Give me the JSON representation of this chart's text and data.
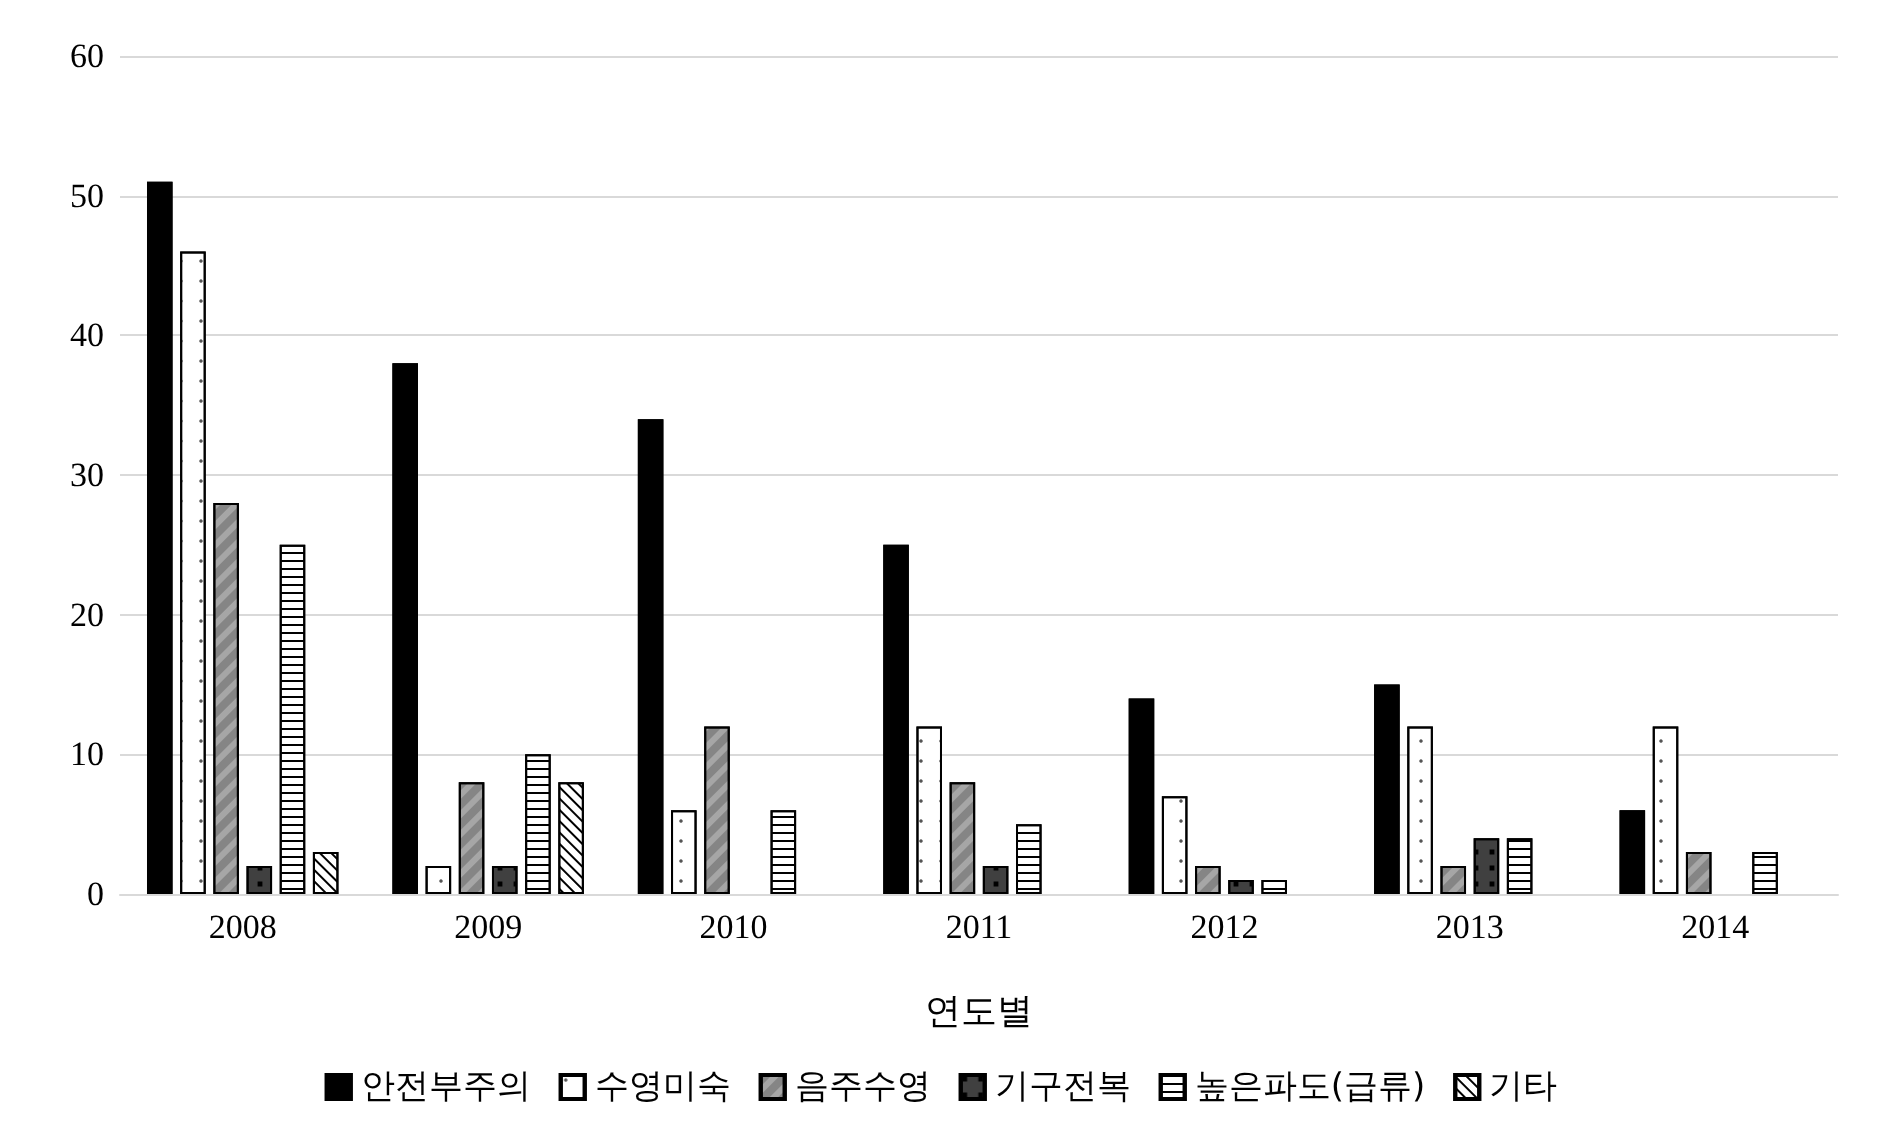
{
  "chart_data": {
    "type": "bar",
    "xlabel": "연도별",
    "categories": [
      "2008",
      "2009",
      "2010",
      "2011",
      "2012",
      "2013",
      "2014"
    ],
    "series": [
      {
        "name": "안전부주의",
        "color": "#000000",
        "values": [
          51,
          38,
          34,
          25,
          14,
          15,
          6
        ]
      },
      {
        "name": "수영미숙",
        "color": "#ffffff",
        "values": [
          46,
          2,
          6,
          12,
          7,
          12,
          12
        ]
      },
      {
        "name": "음주수영",
        "color": "#a6a6a6",
        "values": [
          28,
          8,
          12,
          8,
          2,
          2,
          3
        ]
      },
      {
        "name": "기구전복",
        "color": "#404040",
        "values": [
          2,
          2,
          null,
          2,
          1,
          4,
          null
        ]
      },
      {
        "name": "높은파도(급류)",
        "color": "#ffffff",
        "values": [
          25,
          10,
          6,
          5,
          1,
          4,
          3
        ]
      },
      {
        "name": "기타",
        "color": "#ffffff",
        "values": [
          3,
          8,
          null,
          null,
          null,
          null,
          null
        ]
      }
    ],
    "ylim": [
      0,
      60
    ],
    "yticks": [
      0,
      10,
      20,
      30,
      40,
      50,
      60
    ],
    "grid": "y",
    "legend": "bottom"
  }
}
